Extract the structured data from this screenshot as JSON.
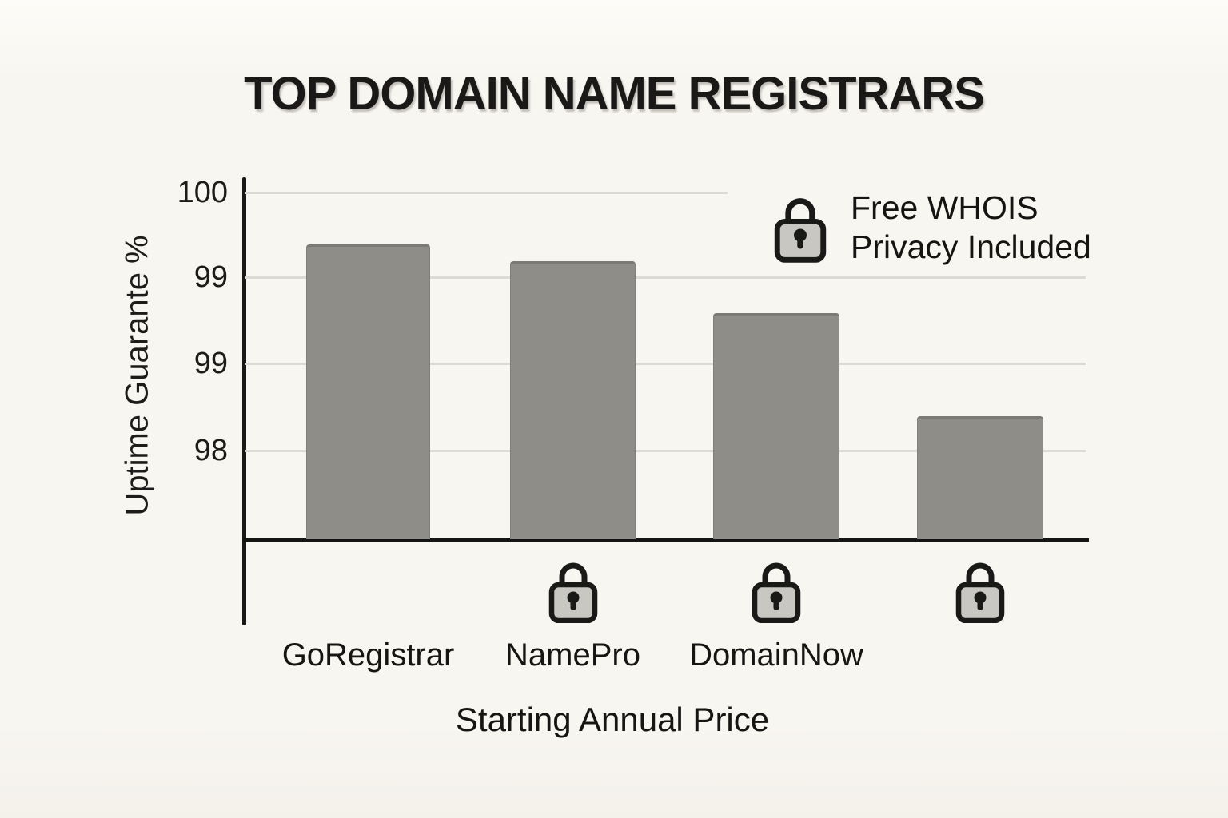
{
  "chart_data": {
    "type": "bar",
    "title": "TOP DOMAIN NAME REGISTRARS",
    "xlabel": "Starting Annual Price",
    "ylabel": "Uptime Guarante %",
    "categories": [
      "GoRegistrar",
      "NamePro",
      "DomainNow",
      ""
    ],
    "values": [
      99.7,
      99.6,
      99.3,
      98.7
    ],
    "y_tick_labels": [
      "100",
      "99",
      "99",
      "98"
    ],
    "ylim": [
      97.5,
      100
    ],
    "grid": true,
    "legend_position": "top-right",
    "legend": {
      "icon": "lock-icon",
      "line1": "Free WHOIS",
      "line2": "Privacy Included"
    },
    "free_whois_privacy_included": [
      false,
      true,
      true,
      true
    ],
    "colors": {
      "bar": "#8f8d87",
      "background": "#f8f6f0",
      "gridline": "#dcdad4",
      "axis": "#181816",
      "text": "#1a1918",
      "lock_body": "#c9c7c1",
      "lock_outline": "#191917"
    }
  }
}
